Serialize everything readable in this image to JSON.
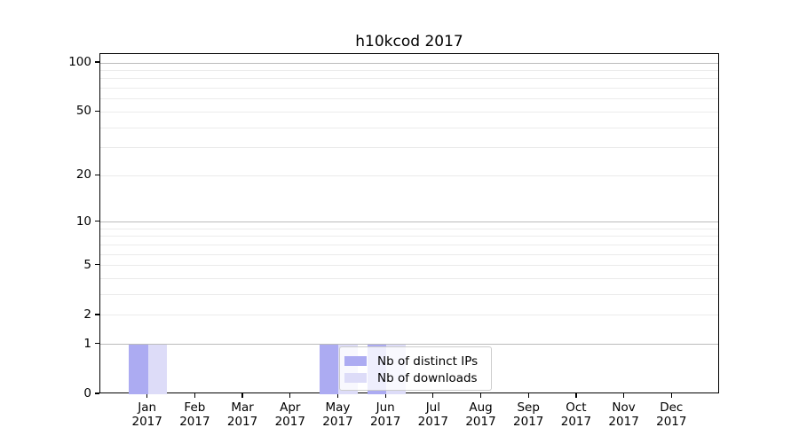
{
  "chart_data": {
    "type": "bar",
    "title": "h10kcod 2017",
    "x": {
      "months": [
        "Jan",
        "Feb",
        "Mar",
        "Apr",
        "May",
        "Jun",
        "Jul",
        "Aug",
        "Sep",
        "Oct",
        "Nov",
        "Dec"
      ],
      "year": "2017"
    },
    "series": [
      {
        "name": "Nb of distinct IPs",
        "color": "#acabf2",
        "values": [
          1,
          0,
          0,
          0,
          1,
          1,
          0,
          0,
          0,
          0,
          0,
          0
        ]
      },
      {
        "name": "Nb of downloads",
        "color": "#dddcf8",
        "values": [
          1,
          0,
          0,
          0,
          1,
          1,
          0,
          0,
          0,
          0,
          0,
          0
        ]
      }
    ],
    "y_axis": {
      "scale": "log1p",
      "tick_values": [
        0,
        1,
        2,
        5,
        10,
        20,
        50,
        100
      ],
      "tick_labels": [
        "0",
        "1",
        "2",
        "5",
        "10",
        "20",
        "50",
        "100"
      ],
      "major_gridlines": [
        1,
        10,
        100
      ],
      "minor_gridlines": [
        2,
        3,
        4,
        5,
        6,
        7,
        8,
        9,
        20,
        30,
        40,
        50,
        60,
        70,
        80,
        90
      ]
    },
    "legend": {
      "position": "lower center",
      "entries": [
        "Nb of distinct IPs",
        "Nb of downloads"
      ]
    },
    "colors": {
      "grid_major": "#bbbbbb",
      "grid_minor": "#ebebeb",
      "spine": "#000000",
      "legend_border": "#cccccc"
    },
    "grid": true
  }
}
